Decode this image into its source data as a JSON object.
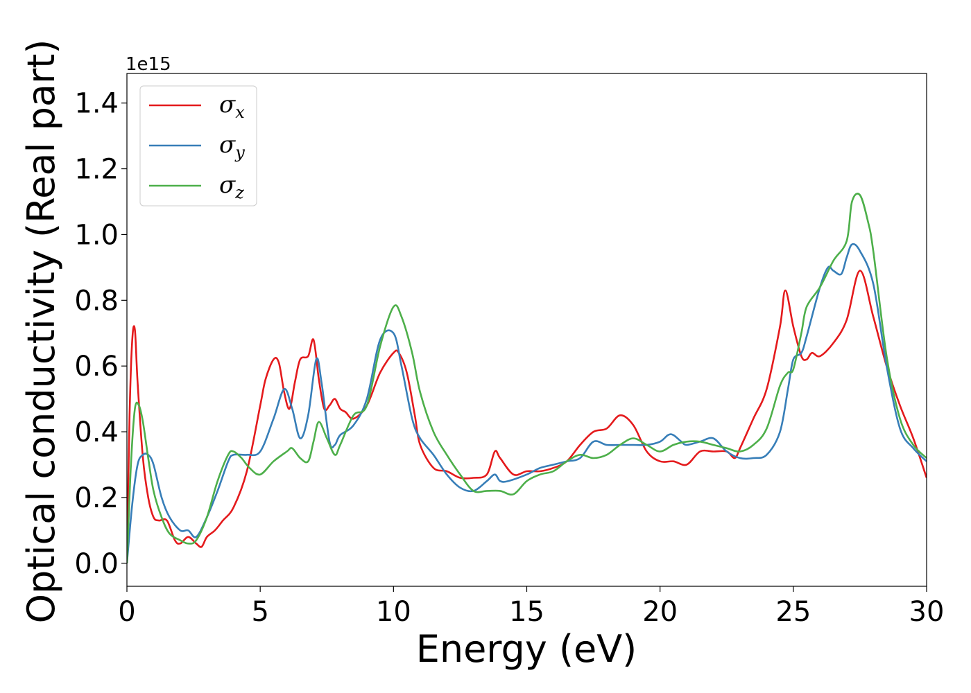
{
  "chart_data": {
    "type": "line",
    "xlabel": "Energy (eV)",
    "ylabel": "Optical conductivity (Real part)",
    "y_offset_text": "1e15",
    "xlim": [
      0,
      30
    ],
    "ylim": [
      -0.07,
      1.49
    ],
    "x_ticks": [
      0,
      5,
      10,
      15,
      20,
      25,
      30
    ],
    "x_tick_labels": [
      "0",
      "5",
      "10",
      "15",
      "20",
      "25",
      "30"
    ],
    "y_ticks": [
      0.0,
      0.2,
      0.4,
      0.6,
      0.8,
      1.0,
      1.2,
      1.4
    ],
    "y_tick_labels": [
      "0.0",
      "0.2",
      "0.4",
      "0.6",
      "0.8",
      "1.0",
      "1.2",
      "1.4"
    ],
    "grid": false,
    "legend_position": "top-left",
    "series": [
      {
        "name": "σ",
        "sub": "x",
        "color": "#e41a1c",
        "x": [
          0,
          0.1,
          0.2,
          0.3,
          0.4,
          0.6,
          0.8,
          1.0,
          1.2,
          1.5,
          1.8,
          2.0,
          2.3,
          2.6,
          2.8,
          3.0,
          3.3,
          3.6,
          4.0,
          4.5,
          5.0,
          5.2,
          5.5,
          5.7,
          5.9,
          6.1,
          6.3,
          6.5,
          6.8,
          7.0,
          7.2,
          7.4,
          7.6,
          7.8,
          8.0,
          8.2,
          8.5,
          9.0,
          9.5,
          10.0,
          10.2,
          10.5,
          10.8,
          11.0,
          11.5,
          12.0,
          12.5,
          13.0,
          13.5,
          13.8,
          14.0,
          14.5,
          15.0,
          15.5,
          16.0,
          16.5,
          17.0,
          17.5,
          18.0,
          18.5,
          19.0,
          19.5,
          20.0,
          20.5,
          21.0,
          21.5,
          22.0,
          22.5,
          22.8,
          23.0,
          23.5,
          24.0,
          24.5,
          24.7,
          25.0,
          25.3,
          25.5,
          25.7,
          26.0,
          26.5,
          27.0,
          27.5,
          28.0,
          28.5,
          29.0,
          29.5,
          30.0
        ],
        "y": [
          0.0,
          0.45,
          0.68,
          0.71,
          0.55,
          0.32,
          0.2,
          0.14,
          0.13,
          0.13,
          0.07,
          0.06,
          0.08,
          0.06,
          0.05,
          0.08,
          0.1,
          0.13,
          0.17,
          0.28,
          0.48,
          0.56,
          0.62,
          0.61,
          0.52,
          0.47,
          0.55,
          0.62,
          0.63,
          0.68,
          0.56,
          0.47,
          0.48,
          0.5,
          0.47,
          0.46,
          0.44,
          0.48,
          0.58,
          0.64,
          0.64,
          0.58,
          0.45,
          0.36,
          0.29,
          0.28,
          0.26,
          0.26,
          0.27,
          0.34,
          0.32,
          0.27,
          0.28,
          0.28,
          0.29,
          0.31,
          0.36,
          0.4,
          0.41,
          0.45,
          0.42,
          0.34,
          0.31,
          0.31,
          0.3,
          0.34,
          0.34,
          0.34,
          0.32,
          0.35,
          0.44,
          0.53,
          0.72,
          0.83,
          0.72,
          0.63,
          0.62,
          0.64,
          0.63,
          0.67,
          0.74,
          0.89,
          0.75,
          0.6,
          0.48,
          0.38,
          0.26
        ]
      },
      {
        "name": "σ",
        "sub": "y",
        "color": "#377eb8",
        "x": [
          0,
          0.2,
          0.4,
          0.6,
          0.8,
          1.0,
          1.3,
          1.6,
          2.0,
          2.3,
          2.6,
          3.0,
          3.4,
          3.8,
          4.0,
          4.5,
          5.0,
          5.5,
          5.9,
          6.2,
          6.5,
          6.8,
          7.1,
          7.3,
          7.6,
          7.8,
          8.0,
          8.5,
          9.0,
          9.5,
          10.0,
          10.3,
          10.7,
          11.0,
          11.5,
          12.0,
          12.5,
          13.0,
          13.5,
          13.8,
          14.0,
          14.3,
          15.0,
          15.5,
          16.0,
          16.5,
          17.0,
          17.5,
          18.0,
          18.5,
          19.0,
          19.5,
          20.0,
          20.3,
          20.5,
          20.8,
          21.0,
          21.5,
          22.0,
          22.5,
          23.0,
          23.5,
          24.0,
          24.5,
          24.8,
          25.0,
          25.3,
          25.5,
          26.0,
          26.3,
          26.5,
          26.8,
          27.0,
          27.2,
          27.5,
          28.0,
          28.5,
          29.0,
          29.5,
          30.0
        ],
        "y": [
          0.0,
          0.18,
          0.3,
          0.33,
          0.33,
          0.3,
          0.2,
          0.14,
          0.1,
          0.1,
          0.08,
          0.14,
          0.22,
          0.31,
          0.33,
          0.33,
          0.34,
          0.44,
          0.53,
          0.47,
          0.38,
          0.45,
          0.62,
          0.55,
          0.37,
          0.36,
          0.39,
          0.42,
          0.5,
          0.68,
          0.7,
          0.6,
          0.44,
          0.38,
          0.33,
          0.27,
          0.23,
          0.22,
          0.25,
          0.27,
          0.25,
          0.25,
          0.27,
          0.29,
          0.3,
          0.31,
          0.32,
          0.37,
          0.36,
          0.36,
          0.36,
          0.36,
          0.37,
          0.39,
          0.39,
          0.37,
          0.36,
          0.37,
          0.38,
          0.34,
          0.32,
          0.32,
          0.33,
          0.4,
          0.53,
          0.62,
          0.64,
          0.69,
          0.84,
          0.9,
          0.89,
          0.88,
          0.93,
          0.97,
          0.95,
          0.85,
          0.6,
          0.41,
          0.35,
          0.31
        ]
      },
      {
        "name": "σ",
        "sub": "z",
        "color": "#4daf4a",
        "x": [
          0,
          0.15,
          0.3,
          0.45,
          0.6,
          0.8,
          1.0,
          1.3,
          1.6,
          2.0,
          2.3,
          2.6,
          3.0,
          3.4,
          3.8,
          4.0,
          4.3,
          4.6,
          5.0,
          5.5,
          6.0,
          6.2,
          6.5,
          6.8,
          7.0,
          7.2,
          7.5,
          7.8,
          8.0,
          8.5,
          9.0,
          9.5,
          10.0,
          10.3,
          10.7,
          11.0,
          11.5,
          12.0,
          12.5,
          13.0,
          13.5,
          14.0,
          14.5,
          15.0,
          15.5,
          16.0,
          16.5,
          17.0,
          17.5,
          18.0,
          18.5,
          19.0,
          19.5,
          20.0,
          20.5,
          21.0,
          21.5,
          22.0,
          22.5,
          23.0,
          23.5,
          24.0,
          24.5,
          24.8,
          25.0,
          25.3,
          25.5,
          26.0,
          26.5,
          27.0,
          27.2,
          27.5,
          27.8,
          28.0,
          28.5,
          29.0,
          29.5,
          30.0
        ],
        "y": [
          0.0,
          0.3,
          0.47,
          0.48,
          0.43,
          0.32,
          0.22,
          0.14,
          0.09,
          0.07,
          0.06,
          0.07,
          0.14,
          0.25,
          0.33,
          0.34,
          0.32,
          0.29,
          0.27,
          0.31,
          0.34,
          0.35,
          0.32,
          0.31,
          0.37,
          0.43,
          0.38,
          0.33,
          0.36,
          0.45,
          0.48,
          0.66,
          0.78,
          0.75,
          0.64,
          0.52,
          0.4,
          0.33,
          0.27,
          0.22,
          0.22,
          0.22,
          0.21,
          0.25,
          0.27,
          0.28,
          0.31,
          0.33,
          0.32,
          0.33,
          0.36,
          0.38,
          0.36,
          0.34,
          0.36,
          0.37,
          0.37,
          0.36,
          0.35,
          0.34,
          0.36,
          0.41,
          0.54,
          0.58,
          0.59,
          0.7,
          0.78,
          0.84,
          0.92,
          0.98,
          1.1,
          1.12,
          1.04,
          0.95,
          0.63,
          0.44,
          0.36,
          0.32
        ]
      }
    ]
  }
}
